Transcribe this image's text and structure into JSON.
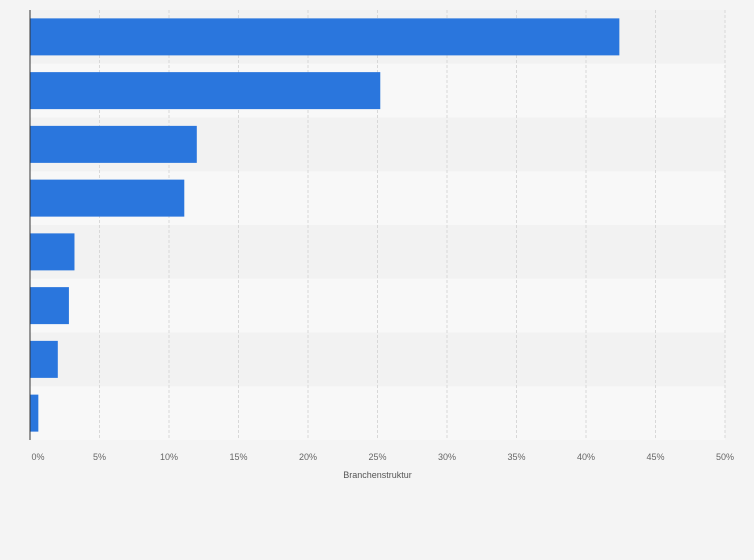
{
  "chart_data": {
    "type": "bar",
    "orientation": "horizontal",
    "title": "",
    "xlabel": "Branchenstruktur",
    "ylabel": "",
    "categories": [
      "",
      "",
      "",
      "",
      "",
      "",
      "",
      ""
    ],
    "values": [
      42.4,
      25.2,
      12.0,
      11.1,
      3.2,
      2.8,
      2.0,
      0.6
    ],
    "xlim": [
      0,
      50
    ],
    "x_ticks": [
      0,
      5,
      10,
      15,
      20,
      25,
      30,
      35,
      40,
      45,
      50
    ],
    "x_tick_labels": [
      "0%",
      "5%",
      "10%",
      "15%",
      "20%",
      "25%",
      "30%",
      "35%",
      "40%",
      "45%",
      "50%"
    ],
    "grid": true,
    "legend": "none",
    "colors": {
      "bar": "#2a76dd",
      "band_dark": "#f2f2f2",
      "band_light": "#f8f8f8",
      "grid": "#d8d8d8",
      "axis": "#333333",
      "background": "#f4f4f4"
    }
  }
}
